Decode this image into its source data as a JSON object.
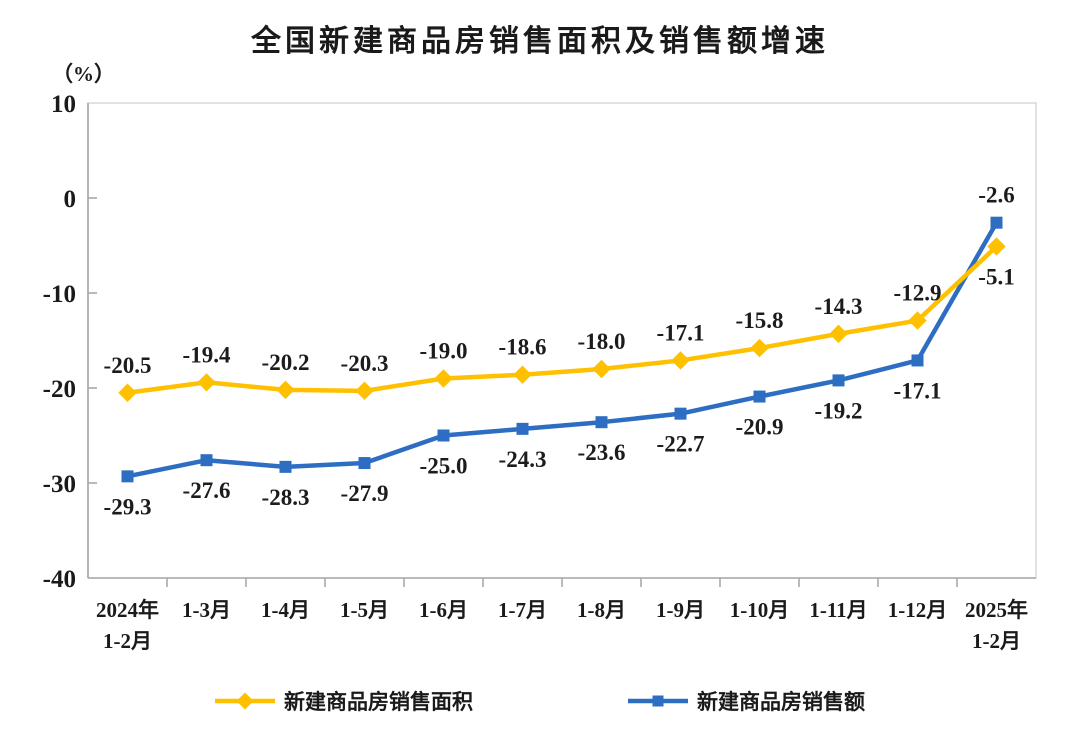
{
  "title": "全国新建商品房销售面积及销售额增速",
  "unit_label": "（%）",
  "legend": [
    {
      "label": "新建商品房销售面积",
      "color": "#FFC000",
      "marker": "diamond"
    },
    {
      "label": "新建商品房销售额",
      "color": "#2D6EC3",
      "marker": "square"
    }
  ],
  "colors": {
    "series_area": "#FFC000",
    "series_value": "#2D6EC3",
    "axis": "#A9A9A9",
    "plot_border": "#D8D8D8",
    "text": "#1a1a1a"
  },
  "chart_data": {
    "type": "line",
    "title": "全国新建商品房销售面积及销售额增速",
    "ylabel": "（%）",
    "xlabel": "",
    "ylim": [
      -40,
      10
    ],
    "yticks": [
      10,
      0,
      -10,
      -20,
      -30,
      -40
    ],
    "grid": false,
    "legend_position": "bottom",
    "categories": [
      "2024年\n1-2月",
      "1-3月",
      "1-4月",
      "1-5月",
      "1-6月",
      "1-7月",
      "1-8月",
      "1-9月",
      "1-10月",
      "1-11月",
      "1-12月",
      "2025年\n1-2月"
    ],
    "series": [
      {
        "name": "新建商品房销售面积",
        "color": "#FFC000",
        "marker": "diamond",
        "label_side": "above",
        "label_side_last": "below",
        "values": [
          -20.5,
          -19.4,
          -20.2,
          -20.3,
          -19.0,
          -18.6,
          -18.0,
          -17.1,
          -15.8,
          -14.3,
          -12.9,
          -5.1
        ]
      },
      {
        "name": "新建商品房销售额",
        "color": "#2D6EC3",
        "marker": "square",
        "label_side": "below",
        "label_side_last": "above",
        "values": [
          -29.3,
          -27.6,
          -28.3,
          -27.9,
          -25.0,
          -24.3,
          -23.6,
          -22.7,
          -20.9,
          -19.2,
          -17.1,
          -2.6
        ]
      }
    ]
  }
}
